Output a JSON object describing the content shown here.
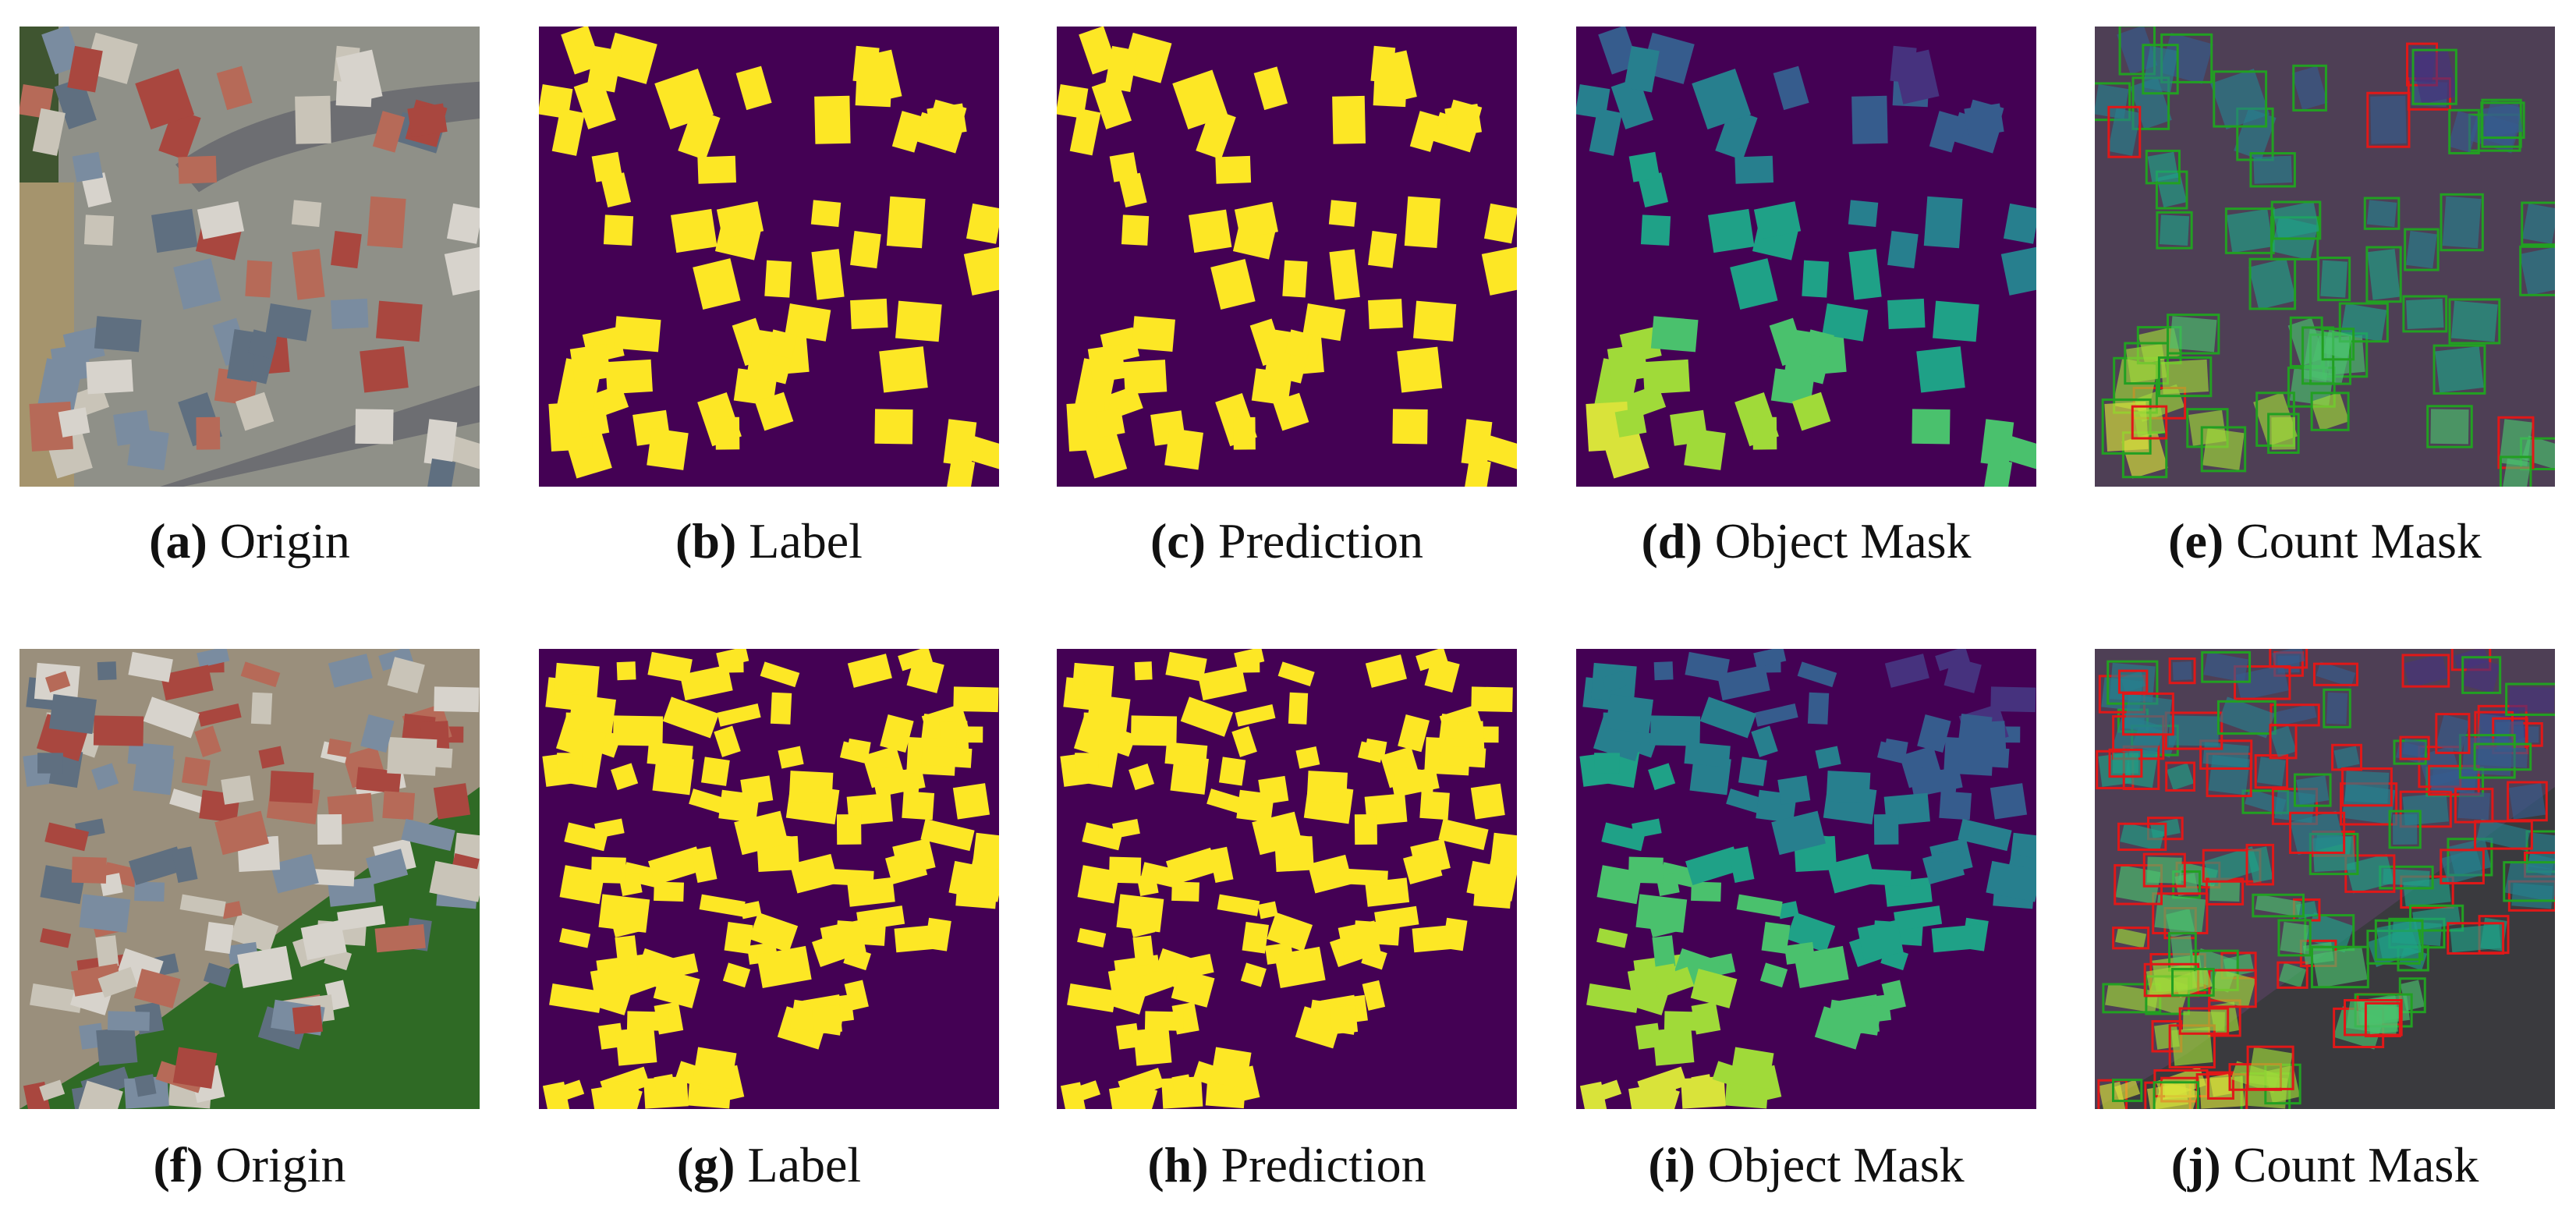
{
  "rows": [
    {
      "panels": [
        {
          "tag": "(a)",
          "caption": "Origin"
        },
        {
          "tag": "(b)",
          "caption": "Label"
        },
        {
          "tag": "(c)",
          "caption": "Prediction"
        },
        {
          "tag": "(d)",
          "caption": "Object Mask"
        },
        {
          "tag": "(e)",
          "caption": "Count Mask"
        }
      ]
    },
    {
      "panels": [
        {
          "tag": "(f)",
          "caption": "Origin"
        },
        {
          "tag": "(g)",
          "caption": "Label"
        },
        {
          "tag": "(h)",
          "caption": "Prediction"
        },
        {
          "tag": "(i)",
          "caption": "Object Mask"
        },
        {
          "tag": "(j)",
          "caption": "Count Mask"
        }
      ]
    }
  ]
}
